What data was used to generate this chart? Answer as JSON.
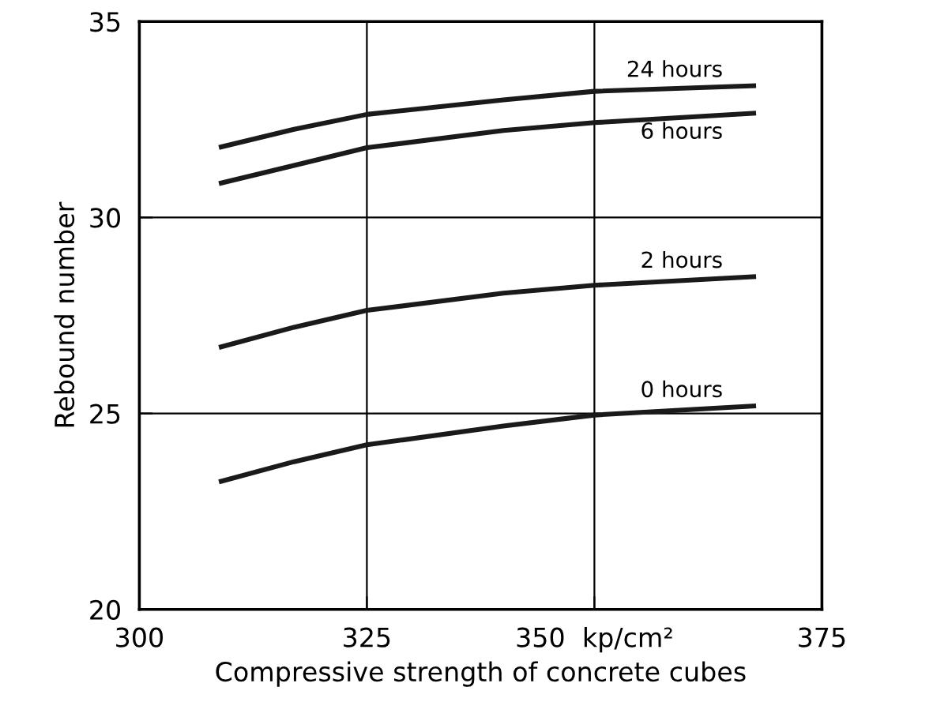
{
  "chart_data": {
    "type": "line",
    "xlabel": "Compressive strength of concrete cubes",
    "ylabel": "Rebound number",
    "xlim": [
      300,
      375
    ],
    "ylim": [
      20,
      35
    ],
    "xticks": [
      300,
      325,
      {
        "value": 350,
        "label": "350  kp/cm²"
      },
      375
    ],
    "yticks": [
      20,
      25,
      30,
      35
    ],
    "grid": true,
    "legend": false,
    "marker": "none",
    "line_style": "solid",
    "series": [
      {
        "name": "24 hours",
        "color": "#1a1a1a",
        "x": [
          309,
          317,
          325,
          340,
          350,
          367.5
        ],
        "values": [
          31.8,
          32.25,
          32.63,
          33.0,
          33.22,
          33.36
        ]
      },
      {
        "name": "6 hours",
        "color": "#1a1a1a",
        "x": [
          309,
          317,
          325,
          340,
          350,
          367.5
        ],
        "values": [
          30.88,
          31.33,
          31.78,
          32.22,
          32.42,
          32.66
        ]
      },
      {
        "name": "2 hours",
        "color": "#1a1a1a",
        "x": [
          309,
          317,
          325,
          340,
          350,
          367.5
        ],
        "values": [
          26.7,
          27.2,
          27.63,
          28.07,
          28.27,
          28.49
        ]
      },
      {
        "name": "0 hours",
        "color": "#1a1a1a",
        "x": [
          309,
          317,
          325,
          340,
          350,
          367.5
        ],
        "values": [
          23.27,
          23.77,
          24.2,
          24.68,
          24.96,
          25.19
        ]
      }
    ]
  }
}
